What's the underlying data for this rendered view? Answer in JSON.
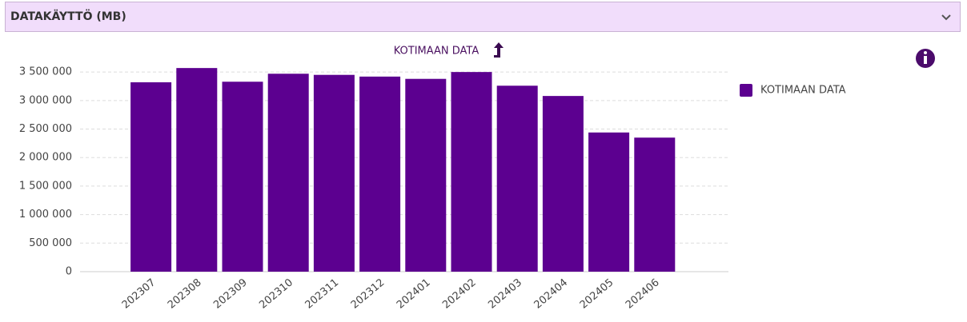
{
  "header": {
    "title": "DATAKÄYTTÖ (MB)"
  },
  "chart_data": {
    "type": "bar",
    "title": "KOTIMAAN DATA",
    "categories": [
      "202307",
      "202308",
      "202309",
      "202310",
      "202311",
      "202312",
      "202401",
      "202402",
      "202403",
      "202404",
      "202405",
      "202406"
    ],
    "series": [
      {
        "name": "KOTIMAAN DATA",
        "color": "#5c0090",
        "values": [
          3320000,
          3570000,
          3330000,
          3470000,
          3450000,
          3420000,
          3380000,
          3500000,
          3260000,
          3080000,
          2440000,
          2350000
        ]
      }
    ],
    "ylim": [
      0,
      3600000
    ],
    "yticks": [
      0,
      {
        "value": 500000,
        "label": "500 000"
      },
      {
        "value": 1000000,
        "label": "1 000 000"
      },
      {
        "value": 1500000,
        "label": "1 500 000"
      },
      {
        "value": 2000000,
        "label": "2 000 000"
      },
      {
        "value": 2500000,
        "label": "2 500 000"
      },
      {
        "value": 3000000,
        "label": "3 000 000"
      },
      {
        "value": 3500000,
        "label": "3 500 000"
      }
    ],
    "grid": true,
    "legend": "right"
  }
}
